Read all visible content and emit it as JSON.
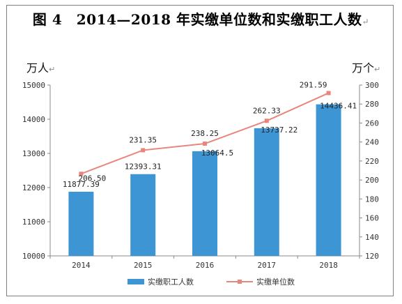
{
  "chart_data": {
    "type": "bar",
    "title": "图 4　2014—2018 年实缴单位数和实缴职工人数",
    "title_mark": "↵",
    "return_mark": "↵",
    "categories": [
      "2014",
      "2015",
      "2016",
      "2017",
      "2018"
    ],
    "y_left": {
      "label": "万人",
      "range": [
        10000,
        15000
      ],
      "ticks": [
        10000,
        11000,
        12000,
        13000,
        14000,
        15000
      ]
    },
    "y_right": {
      "label": "万个",
      "range": [
        120,
        300
      ],
      "ticks": [
        120,
        140,
        160,
        180,
        200,
        220,
        240,
        260,
        280,
        300
      ]
    },
    "series": [
      {
        "name": "实缴职工人数",
        "kind": "bar",
        "axis": "left",
        "color": "#3e95d4",
        "values": [
          11877.39,
          12393.31,
          13064.5,
          13737.22,
          14436.41
        ],
        "labels": [
          "11877.39",
          "12393.31",
          "13064.5",
          "13737.22",
          "14436.41"
        ]
      },
      {
        "name": "实缴单位数",
        "kind": "line",
        "axis": "right",
        "color": "#e8857d",
        "values": [
          206.5,
          231.35,
          238.25,
          262.33,
          291.59
        ],
        "labels": [
          "206.50",
          "231.35",
          "238.25",
          "262.33",
          "291.59"
        ]
      }
    ],
    "legend_position": "bottom",
    "grid": false
  }
}
